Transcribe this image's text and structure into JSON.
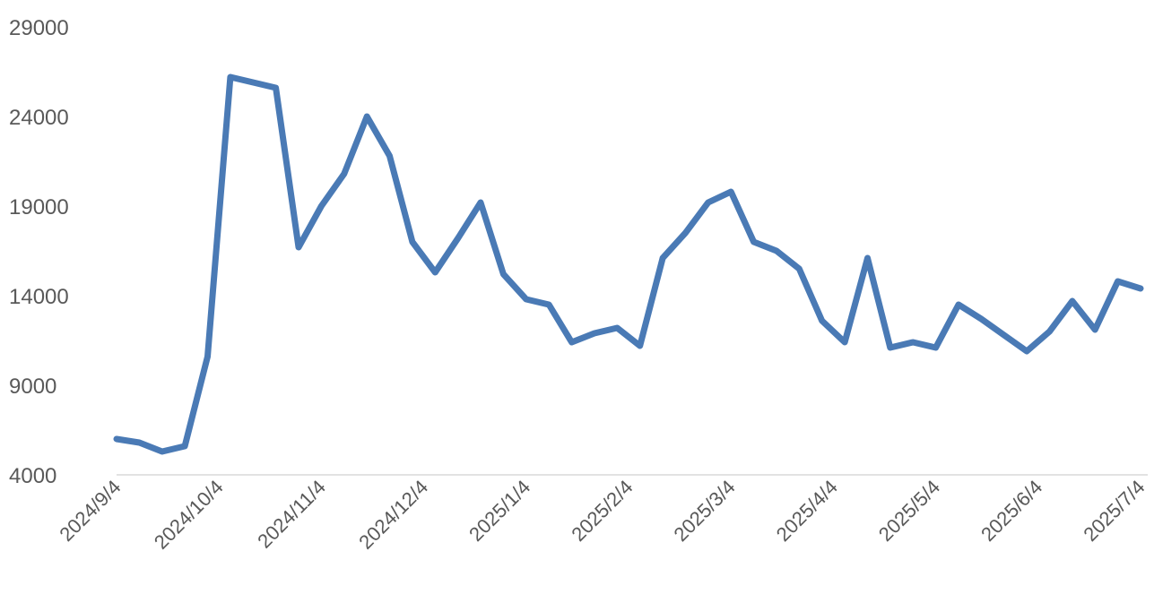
{
  "chart_data": {
    "type": "line",
    "title": "",
    "xlabel": "",
    "ylabel": "",
    "ylim": [
      4000,
      29000
    ],
    "y_ticks": [
      4000,
      9000,
      14000,
      19000,
      24000,
      29000
    ],
    "y_tick_labels": [
      "4000",
      "9000",
      "14000",
      "19000",
      "24000",
      "29000"
    ],
    "x_tick_labels": [
      "2024/9/4",
      "2024/10/4",
      "2024/11/4",
      "2024/12/4",
      "2025/1/4",
      "2025/2/4",
      "2025/3/4",
      "2025/4/4",
      "2025/5/4",
      "2025/6/4",
      "2025/7/4"
    ],
    "grid": false,
    "legend": "none",
    "line_color": "#4a7ab5",
    "axis_color": "#d9d9d9",
    "series": [
      {
        "values": [
          6000,
          5800,
          5300,
          5600,
          10600,
          26200,
          25900,
          25600,
          16700,
          19000,
          20800,
          24000,
          21800,
          17000,
          15300,
          17200,
          19200,
          15200,
          13800,
          13500,
          11400,
          11900,
          12200,
          11200,
          16100,
          17500,
          19200,
          19800,
          17000,
          16500,
          15500,
          12600,
          11400,
          16100,
          11100,
          11400,
          11100,
          13500,
          12700,
          11800,
          10900,
          12000,
          13700,
          12100,
          14800,
          14400
        ]
      }
    ]
  }
}
